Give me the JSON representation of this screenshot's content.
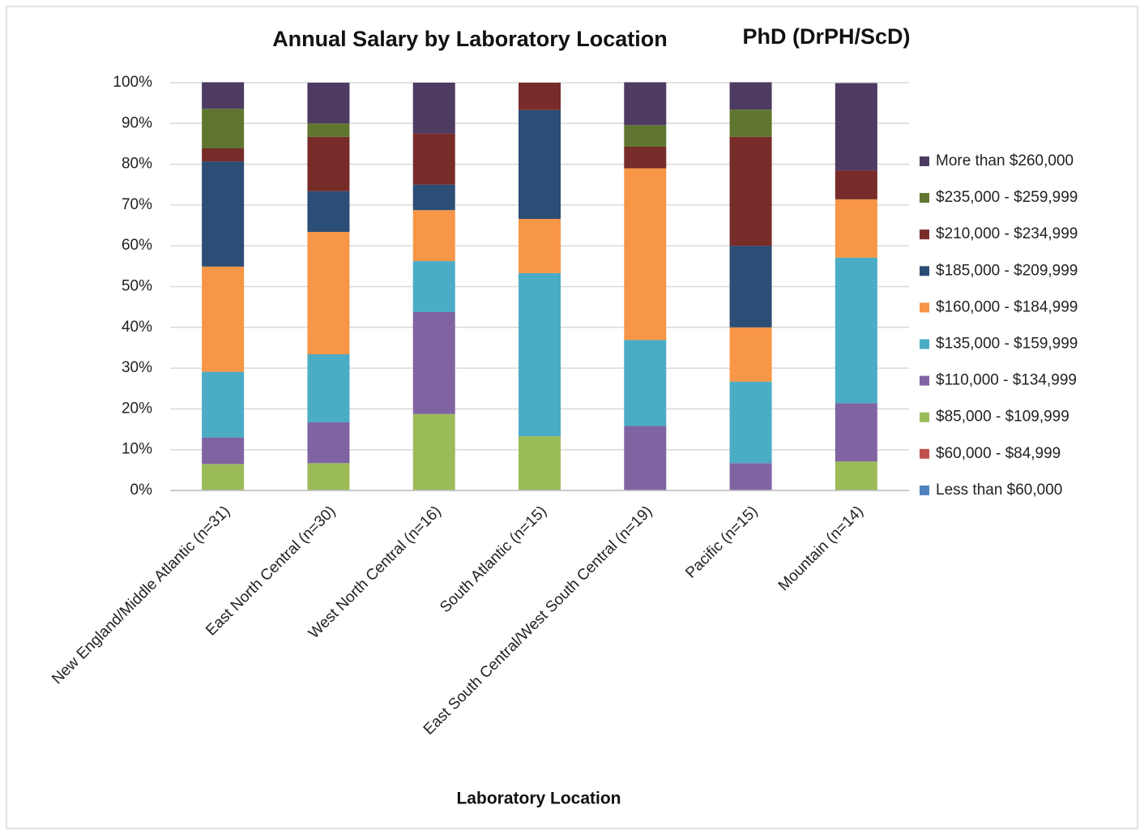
{
  "chart_data": {
    "type": "stacked_bar_100",
    "title": "Annual Salary by Laboratory Location",
    "subtitle": "PhD (DrPH/ScD)",
    "x_label": "Laboratory Location",
    "categories": [
      "New England/Middle Atlantic (n=31)",
      "East North Central (n=30)",
      "West North Central (n=16)",
      "South Atlantic (n=15)",
      "East South Central/West South Central (n=19)",
      "Pacific (n=15)",
      "Mountain (n=14)"
    ],
    "series": [
      {
        "name": "Less than $60,000",
        "color": "#4f81bd",
        "values": [
          0,
          0,
          0,
          0,
          0,
          0,
          0
        ]
      },
      {
        "name": "$60,000 - $84,999",
        "color": "#c0504d",
        "values": [
          0,
          0,
          0,
          0,
          0,
          0,
          0
        ]
      },
      {
        "name": "$85,000 - $109,999",
        "color": "#9bbb59",
        "values": [
          6.5,
          6.7,
          18.75,
          13.3,
          0,
          0,
          7.1
        ]
      },
      {
        "name": "$110,000 - $134,999",
        "color": "#8064a2",
        "values": [
          6.5,
          10,
          25,
          0,
          15.8,
          6.7,
          14.3
        ]
      },
      {
        "name": "$135,000 - $159,999",
        "color": "#4bacc6",
        "values": [
          16.1,
          16.7,
          12.5,
          40,
          21.1,
          20,
          35.7
        ]
      },
      {
        "name": "$160,000 - $184,999",
        "color": "#f79646",
        "values": [
          25.8,
          30,
          12.5,
          13.3,
          42.1,
          13.3,
          14.3
        ]
      },
      {
        "name": "$185,000 - $209,999",
        "color": "#2c4d75",
        "values": [
          25.8,
          10,
          6.25,
          26.7,
          0,
          20,
          0
        ]
      },
      {
        "name": "$210,000 - $234,999",
        "color": "#772c2a",
        "values": [
          3.2,
          13.3,
          12.5,
          6.7,
          5.3,
          26.7,
          7.1
        ]
      },
      {
        "name": "$235,000 - $259,999",
        "color": "#5f7530",
        "values": [
          9.7,
          3.3,
          0,
          0,
          5.3,
          6.7,
          0
        ]
      },
      {
        "name": "More than $260,000",
        "color": "#4d3b62",
        "values": [
          6.5,
          10,
          12.5,
          0,
          10.5,
          6.7,
          21.4
        ]
      }
    ],
    "ylim": [
      0,
      100
    ],
    "yticks": [
      {
        "value": 0,
        "label": "0%"
      },
      {
        "value": 10,
        "label": "10%"
      },
      {
        "value": 20,
        "label": "20%"
      },
      {
        "value": 30,
        "label": "30%"
      },
      {
        "value": 40,
        "label": "40%"
      },
      {
        "value": 50,
        "label": "50%"
      },
      {
        "value": 60,
        "label": "60%"
      },
      {
        "value": 70,
        "label": "70%"
      },
      {
        "value": 80,
        "label": "80%"
      },
      {
        "value": 90,
        "label": "90%"
      },
      {
        "value": 100,
        "label": "100%"
      }
    ],
    "grid": true,
    "legend": "right"
  }
}
